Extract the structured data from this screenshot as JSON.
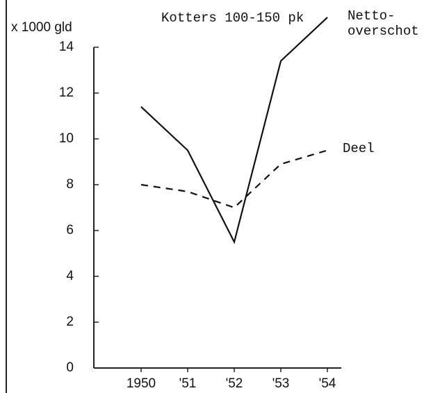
{
  "chart_data": {
    "type": "line",
    "title": "Kotters 100-150 pk",
    "y_label": "x 1000 gld",
    "categories": [
      "1950",
      "'51",
      "'52",
      "'53",
      "'54"
    ],
    "series": [
      {
        "name": "Netto-overschot",
        "color": "#111111",
        "linestyle": "solid",
        "values": [
          11.4,
          9.5,
          5.5,
          13.4,
          15.3
        ]
      },
      {
        "name": "Deel",
        "color": "#111111",
        "linestyle": "dashed",
        "values": [
          8.0,
          7.7,
          7.0,
          8.9,
          9.5
        ]
      }
    ],
    "ylim": [
      0,
      14
    ],
    "yticks": [
      0,
      2,
      4,
      6,
      8,
      10,
      12,
      14
    ],
    "grid": false
  }
}
